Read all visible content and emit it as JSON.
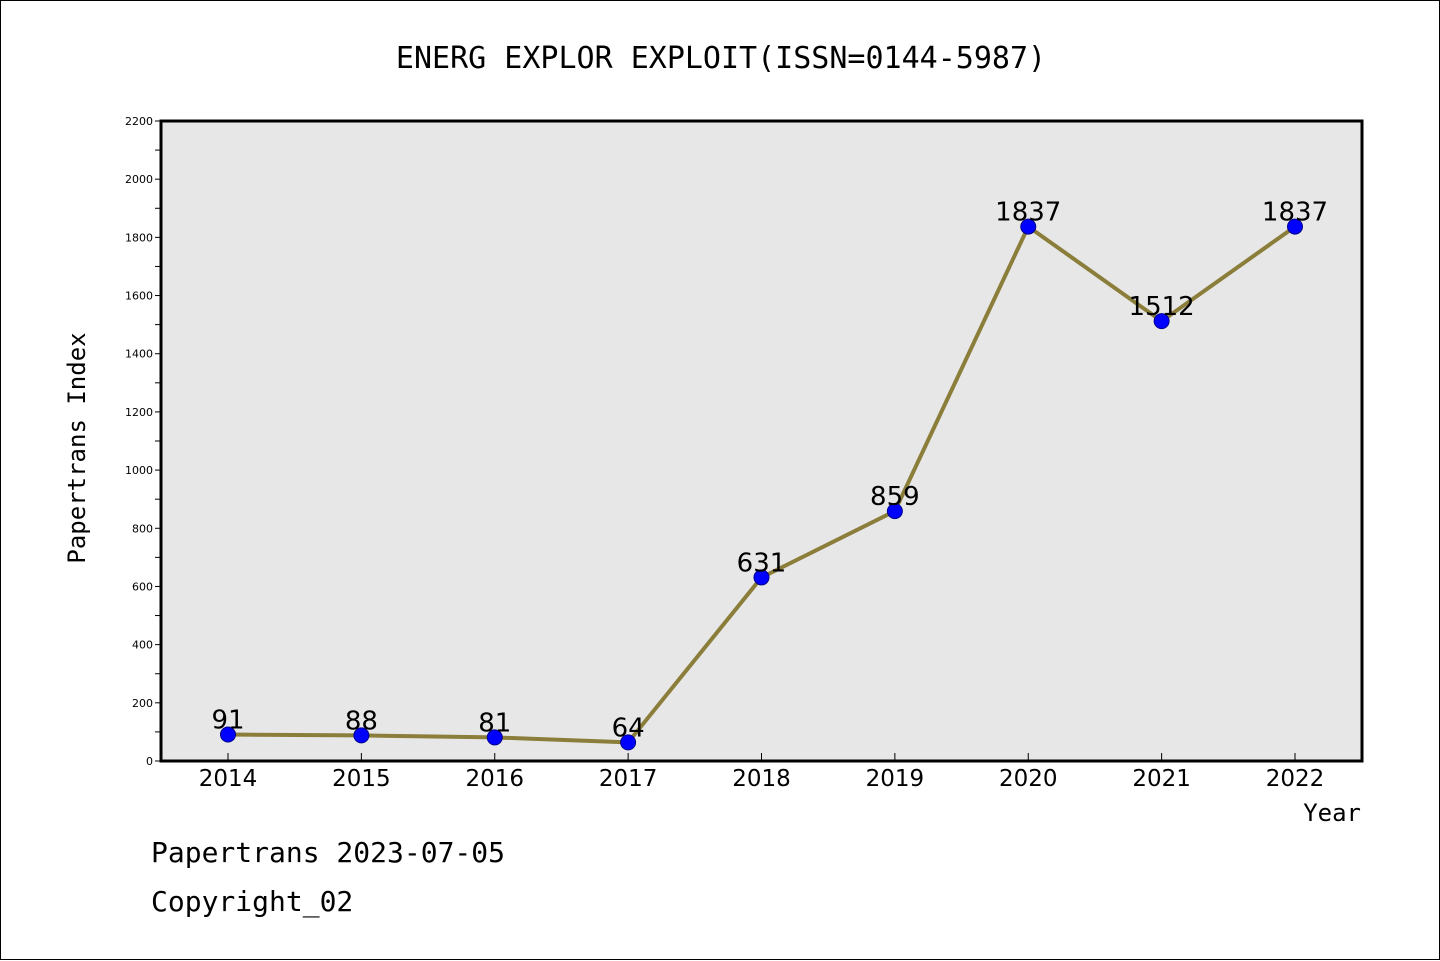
{
  "chart_data": {
    "type": "line",
    "title": "ENERG EXPLOR EXPLOIT(ISSN=0144-5987)",
    "xlabel": "Year",
    "ylabel": "Papertrans Index",
    "categories": [
      "2014",
      "2015",
      "2016",
      "2017",
      "2018",
      "2019",
      "2020",
      "2021",
      "2022"
    ],
    "series": [
      {
        "values": [
          91,
          88,
          81,
          64,
          631,
          859,
          1837,
          1512,
          1837
        ]
      }
    ],
    "data_labels": [
      "91",
      "88",
      "81",
      "64",
      "631",
      "859",
      "1837",
      "1512",
      "1837"
    ],
    "ylim": [
      0,
      2200
    ],
    "yticks": [
      0,
      200,
      400,
      600,
      800,
      1000,
      1200,
      1400,
      1600,
      1800,
      2000,
      2200
    ],
    "ytick_labels": [
      "0",
      "200",
      "400",
      "600",
      "800",
      "1000",
      "1200",
      "1400",
      "1600",
      "1800",
      "2000",
      "2200"
    ],
    "grid": false,
    "background": "#e7e7e7",
    "line_color": "#8b7d3a",
    "marker_color": "#0000ff"
  },
  "footer": {
    "date_line": "Papertrans 2023-07-05",
    "copyright": "Copyright_02"
  }
}
